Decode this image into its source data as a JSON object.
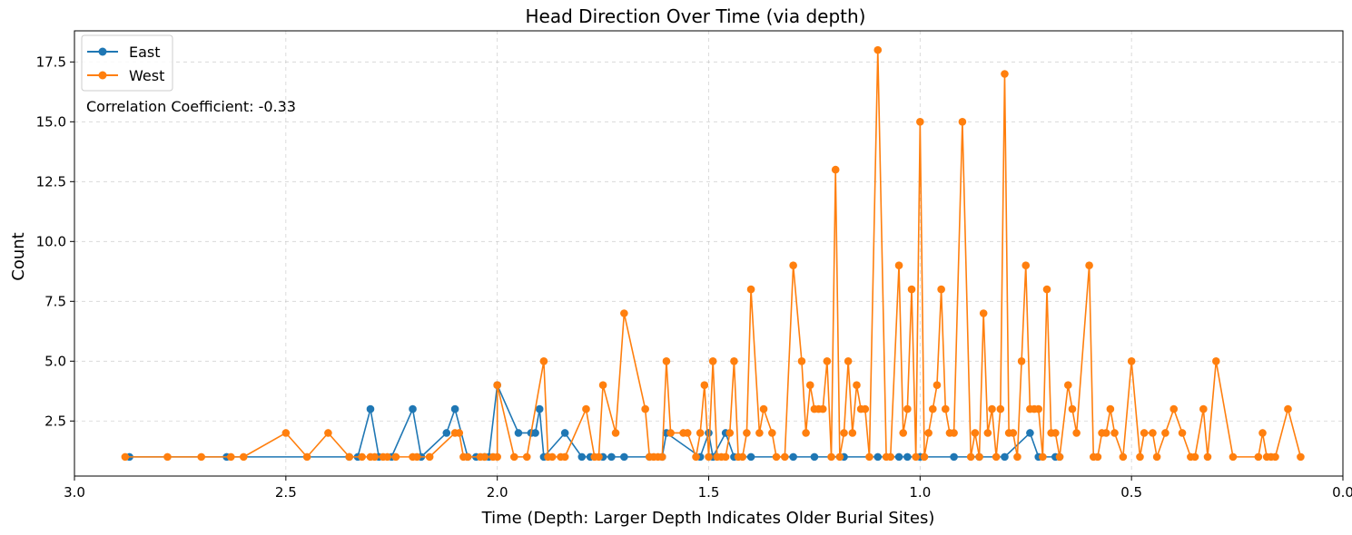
{
  "chart_data": {
    "type": "line",
    "title": "Head Direction Over Time (via depth)",
    "xlabel": "Time (Depth: Larger Depth Indicates Older Burial Sites)",
    "ylabel": "Count",
    "xlim": [
      3.0,
      0.0
    ],
    "ylim": [
      0.2,
      18.8
    ],
    "x_inverted": true,
    "grid": true,
    "legend_position": "top-left",
    "x_ticks": [
      "3.0",
      "2.5",
      "2.0",
      "1.5",
      "1.0",
      "0.5",
      "0.0"
    ],
    "x_tick_values": [
      3.0,
      2.5,
      2.0,
      1.5,
      1.0,
      0.5,
      0.0
    ],
    "y_ticks": [
      "2.5",
      "5.0",
      "7.5",
      "10.0",
      "12.5",
      "15.0",
      "17.5"
    ],
    "y_tick_values": [
      2.5,
      5.0,
      7.5,
      10.0,
      12.5,
      15.0,
      17.5
    ],
    "annotation": "Correlation Coefficient: -0.33",
    "series": [
      {
        "name": "East",
        "color": "#1f77b4",
        "points": [
          [
            2.87,
            1
          ],
          [
            2.64,
            1
          ],
          [
            2.35,
            1
          ],
          [
            2.33,
            1
          ],
          [
            2.3,
            3
          ],
          [
            2.28,
            1
          ],
          [
            2.25,
            1
          ],
          [
            2.2,
            3
          ],
          [
            2.18,
            1
          ],
          [
            2.12,
            2
          ],
          [
            2.1,
            3
          ],
          [
            2.07,
            1
          ],
          [
            2.05,
            1
          ],
          [
            2.03,
            1
          ],
          [
            2.02,
            1
          ],
          [
            2.0,
            4
          ],
          [
            1.95,
            2
          ],
          [
            1.92,
            2
          ],
          [
            1.91,
            2
          ],
          [
            1.9,
            3
          ],
          [
            1.89,
            1
          ],
          [
            1.84,
            2
          ],
          [
            1.8,
            1
          ],
          [
            1.78,
            1
          ],
          [
            1.75,
            1
          ],
          [
            1.73,
            1
          ],
          [
            1.7,
            1
          ],
          [
            1.64,
            1
          ],
          [
            1.61,
            1
          ],
          [
            1.6,
            2
          ],
          [
            1.52,
            1
          ],
          [
            1.5,
            2
          ],
          [
            1.49,
            1
          ],
          [
            1.46,
            2
          ],
          [
            1.44,
            1
          ],
          [
            1.4,
            1
          ],
          [
            1.3,
            1
          ],
          [
            1.25,
            1
          ],
          [
            1.18,
            1
          ],
          [
            1.1,
            1
          ],
          [
            1.05,
            1
          ],
          [
            1.03,
            1
          ],
          [
            1.0,
            1
          ],
          [
            0.92,
            1
          ],
          [
            0.86,
            1
          ],
          [
            0.8,
            1
          ],
          [
            0.74,
            2
          ],
          [
            0.72,
            1
          ],
          [
            0.68,
            1
          ],
          [
            0.67,
            1
          ]
        ]
      },
      {
        "name": "West",
        "color": "#ff7f0e",
        "points": [
          [
            2.88,
            1
          ],
          [
            2.78,
            1
          ],
          [
            2.7,
            1
          ],
          [
            2.63,
            1
          ],
          [
            2.6,
            1
          ],
          [
            2.5,
            2
          ],
          [
            2.45,
            1
          ],
          [
            2.4,
            2
          ],
          [
            2.35,
            1
          ],
          [
            2.32,
            1
          ],
          [
            2.3,
            1
          ],
          [
            2.29,
            1
          ],
          [
            2.27,
            1
          ],
          [
            2.26,
            1
          ],
          [
            2.24,
            1
          ],
          [
            2.2,
            1
          ],
          [
            2.19,
            1
          ],
          [
            2.16,
            1
          ],
          [
            2.1,
            2
          ],
          [
            2.09,
            2
          ],
          [
            2.08,
            1
          ],
          [
            2.07,
            1
          ],
          [
            2.04,
            1
          ],
          [
            2.03,
            1
          ],
          [
            2.01,
            1
          ],
          [
            2.0,
            1
          ],
          [
            2.0,
            4
          ],
          [
            1.96,
            1
          ],
          [
            1.93,
            1
          ],
          [
            1.89,
            5
          ],
          [
            1.88,
            1
          ],
          [
            1.87,
            1
          ],
          [
            1.85,
            1
          ],
          [
            1.84,
            1
          ],
          [
            1.79,
            3
          ],
          [
            1.77,
            1
          ],
          [
            1.76,
            1
          ],
          [
            1.75,
            4
          ],
          [
            1.72,
            2
          ],
          [
            1.7,
            7
          ],
          [
            1.65,
            3
          ],
          [
            1.64,
            1
          ],
          [
            1.63,
            1
          ],
          [
            1.62,
            1
          ],
          [
            1.61,
            1
          ],
          [
            1.6,
            5
          ],
          [
            1.59,
            2
          ],
          [
            1.56,
            2
          ],
          [
            1.55,
            2
          ],
          [
            1.53,
            1
          ],
          [
            1.52,
            2
          ],
          [
            1.51,
            4
          ],
          [
            1.5,
            1
          ],
          [
            1.49,
            5
          ],
          [
            1.48,
            1
          ],
          [
            1.47,
            1
          ],
          [
            1.46,
            1
          ],
          [
            1.45,
            2
          ],
          [
            1.44,
            5
          ],
          [
            1.43,
            1
          ],
          [
            1.42,
            1
          ],
          [
            1.41,
            2
          ],
          [
            1.4,
            8
          ],
          [
            1.38,
            2
          ],
          [
            1.37,
            3
          ],
          [
            1.35,
            2
          ],
          [
            1.34,
            1
          ],
          [
            1.32,
            1
          ],
          [
            1.3,
            9
          ],
          [
            1.28,
            5
          ],
          [
            1.27,
            2
          ],
          [
            1.26,
            4
          ],
          [
            1.25,
            3
          ],
          [
            1.24,
            3
          ],
          [
            1.23,
            3
          ],
          [
            1.22,
            5
          ],
          [
            1.21,
            1
          ],
          [
            1.2,
            13
          ],
          [
            1.19,
            1
          ],
          [
            1.18,
            2
          ],
          [
            1.17,
            5
          ],
          [
            1.16,
            2
          ],
          [
            1.15,
            4
          ],
          [
            1.14,
            3
          ],
          [
            1.13,
            3
          ],
          [
            1.12,
            1
          ],
          [
            1.1,
            18
          ],
          [
            1.08,
            1
          ],
          [
            1.07,
            1
          ],
          [
            1.05,
            9
          ],
          [
            1.04,
            2
          ],
          [
            1.03,
            3
          ],
          [
            1.02,
            8
          ],
          [
            1.01,
            1
          ],
          [
            1.0,
            15
          ],
          [
            0.99,
            1
          ],
          [
            0.98,
            2
          ],
          [
            0.97,
            3
          ],
          [
            0.96,
            4
          ],
          [
            0.95,
            8
          ],
          [
            0.94,
            3
          ],
          [
            0.93,
            2
          ],
          [
            0.92,
            2
          ],
          [
            0.9,
            15
          ],
          [
            0.88,
            1
          ],
          [
            0.87,
            2
          ],
          [
            0.86,
            1
          ],
          [
            0.85,
            7
          ],
          [
            0.84,
            2
          ],
          [
            0.83,
            3
          ],
          [
            0.82,
            1
          ],
          [
            0.81,
            3
          ],
          [
            0.8,
            17
          ],
          [
            0.79,
            2
          ],
          [
            0.78,
            2
          ],
          [
            0.77,
            1
          ],
          [
            0.76,
            5
          ],
          [
            0.75,
            9
          ],
          [
            0.74,
            3
          ],
          [
            0.73,
            3
          ],
          [
            0.72,
            3
          ],
          [
            0.71,
            1
          ],
          [
            0.7,
            8
          ],
          [
            0.69,
            2
          ],
          [
            0.68,
            2
          ],
          [
            0.67,
            1
          ],
          [
            0.65,
            4
          ],
          [
            0.64,
            3
          ],
          [
            0.63,
            2
          ],
          [
            0.6,
            9
          ],
          [
            0.59,
            1
          ],
          [
            0.58,
            1
          ],
          [
            0.57,
            2
          ],
          [
            0.56,
            2
          ],
          [
            0.55,
            3
          ],
          [
            0.54,
            2
          ],
          [
            0.52,
            1
          ],
          [
            0.5,
            5
          ],
          [
            0.48,
            1
          ],
          [
            0.47,
            2
          ],
          [
            0.45,
            2
          ],
          [
            0.44,
            1
          ],
          [
            0.42,
            2
          ],
          [
            0.4,
            3
          ],
          [
            0.38,
            2
          ],
          [
            0.36,
            1
          ],
          [
            0.35,
            1
          ],
          [
            0.33,
            3
          ],
          [
            0.32,
            1
          ],
          [
            0.3,
            5
          ],
          [
            0.26,
            1
          ],
          [
            0.2,
            1
          ],
          [
            0.19,
            2
          ],
          [
            0.18,
            1
          ],
          [
            0.17,
            1
          ],
          [
            0.16,
            1
          ],
          [
            0.13,
            3
          ],
          [
            0.1,
            1
          ]
        ]
      }
    ]
  }
}
